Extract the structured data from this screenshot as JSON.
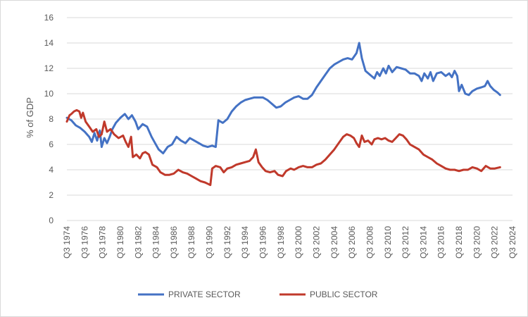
{
  "chart_data": {
    "type": "line",
    "title": "",
    "xlabel": "",
    "ylabel": "% of GDP",
    "ylim": [
      0,
      16
    ],
    "yticks": [
      "0",
      "2",
      "4",
      "6",
      "8",
      "10",
      "12",
      "14",
      "16"
    ],
    "xticks": [
      "Q3 1974",
      "Q3 1976",
      "Q3 1978",
      "Q3 1980",
      "Q3 1982",
      "Q3 1984",
      "Q3 1986",
      "Q3 1988",
      "Q3 1990",
      "Q3 1992",
      "Q3 1994",
      "Q3 1996",
      "Q3 1998",
      "Q3 2000",
      "Q3 2002",
      "Q3 2004",
      "Q3 2006",
      "Q3 2008",
      "Q3 2010",
      "Q3 2012",
      "Q3 2014",
      "Q3 2016",
      "Q3 2018",
      "Q3 2020",
      "Q3 2022",
      "Q3 2024"
    ],
    "grid": true,
    "legend": "bottom",
    "series": [
      {
        "name": "PRIVATE SECTOR",
        "color": "#4472C4",
        "points": [
          [
            1974.5,
            8.1
          ],
          [
            1975.0,
            7.9
          ],
          [
            1975.5,
            7.5
          ],
          [
            1976.0,
            7.3
          ],
          [
            1976.5,
            7.0
          ],
          [
            1977.0,
            6.6
          ],
          [
            1977.3,
            6.2
          ],
          [
            1977.6,
            6.9
          ],
          [
            1977.9,
            6.3
          ],
          [
            1978.2,
            7.1
          ],
          [
            1978.4,
            5.8
          ],
          [
            1978.7,
            6.5
          ],
          [
            1979.0,
            6.1
          ],
          [
            1979.3,
            6.6
          ],
          [
            1979.6,
            7.2
          ],
          [
            1980.0,
            7.7
          ],
          [
            1980.5,
            8.1
          ],
          [
            1981.0,
            8.4
          ],
          [
            1981.4,
            8.0
          ],
          [
            1981.8,
            8.3
          ],
          [
            1982.2,
            7.8
          ],
          [
            1982.5,
            7.2
          ],
          [
            1983.0,
            7.6
          ],
          [
            1983.5,
            7.4
          ],
          [
            1984.0,
            6.6
          ],
          [
            1984.4,
            6.1
          ],
          [
            1984.8,
            5.6
          ],
          [
            1985.3,
            5.3
          ],
          [
            1985.8,
            5.8
          ],
          [
            1986.3,
            6.0
          ],
          [
            1986.8,
            6.6
          ],
          [
            1987.3,
            6.3
          ],
          [
            1987.8,
            6.1
          ],
          [
            1988.3,
            6.5
          ],
          [
            1988.8,
            6.3
          ],
          [
            1989.3,
            6.1
          ],
          [
            1989.8,
            5.9
          ],
          [
            1990.3,
            5.8
          ],
          [
            1990.8,
            5.9
          ],
          [
            1991.2,
            5.8
          ],
          [
            1991.5,
            7.9
          ],
          [
            1992.0,
            7.7
          ],
          [
            1992.5,
            8.0
          ],
          [
            1993.0,
            8.6
          ],
          [
            1993.5,
            9.0
          ],
          [
            1994.0,
            9.3
          ],
          [
            1994.5,
            9.5
          ],
          [
            1995.0,
            9.6
          ],
          [
            1995.5,
            9.7
          ],
          [
            1996.0,
            9.7
          ],
          [
            1996.5,
            9.7
          ],
          [
            1997.0,
            9.5
          ],
          [
            1997.5,
            9.2
          ],
          [
            1998.0,
            8.9
          ],
          [
            1998.5,
            9.0
          ],
          [
            1999.0,
            9.3
          ],
          [
            1999.5,
            9.5
          ],
          [
            2000.0,
            9.7
          ],
          [
            2000.5,
            9.8
          ],
          [
            2001.0,
            9.6
          ],
          [
            2001.5,
            9.6
          ],
          [
            2002.0,
            9.9
          ],
          [
            2002.5,
            10.5
          ],
          [
            2003.0,
            11.0
          ],
          [
            2003.5,
            11.5
          ],
          [
            2004.0,
            12.0
          ],
          [
            2004.5,
            12.3
          ],
          [
            2005.0,
            12.5
          ],
          [
            2005.5,
            12.7
          ],
          [
            2006.0,
            12.8
          ],
          [
            2006.5,
            12.7
          ],
          [
            2007.0,
            13.2
          ],
          [
            2007.3,
            14.0
          ],
          [
            2007.6,
            12.8
          ],
          [
            2008.0,
            11.8
          ],
          [
            2008.5,
            11.5
          ],
          [
            2009.0,
            11.2
          ],
          [
            2009.3,
            11.7
          ],
          [
            2009.6,
            11.4
          ],
          [
            2010.0,
            12.0
          ],
          [
            2010.3,
            11.6
          ],
          [
            2010.6,
            12.2
          ],
          [
            2011.0,
            11.7
          ],
          [
            2011.5,
            12.1
          ],
          [
            2012.0,
            12.0
          ],
          [
            2012.5,
            11.9
          ],
          [
            2013.0,
            11.6
          ],
          [
            2013.5,
            11.6
          ],
          [
            2014.0,
            11.4
          ],
          [
            2014.3,
            11.0
          ],
          [
            2014.6,
            11.6
          ],
          [
            2015.0,
            11.2
          ],
          [
            2015.3,
            11.7
          ],
          [
            2015.6,
            11.0
          ],
          [
            2016.0,
            11.6
          ],
          [
            2016.5,
            11.7
          ],
          [
            2017.0,
            11.4
          ],
          [
            2017.4,
            11.6
          ],
          [
            2017.7,
            11.3
          ],
          [
            2018.0,
            11.8
          ],
          [
            2018.3,
            11.4
          ],
          [
            2018.5,
            10.2
          ],
          [
            2018.8,
            10.7
          ],
          [
            2019.2,
            10.0
          ],
          [
            2019.6,
            9.9
          ],
          [
            2020.0,
            10.2
          ],
          [
            2020.5,
            10.4
          ],
          [
            2021.0,
            10.5
          ],
          [
            2021.4,
            10.6
          ],
          [
            2021.7,
            11.0
          ],
          [
            2022.0,
            10.6
          ],
          [
            2022.4,
            10.3
          ],
          [
            2022.8,
            10.1
          ],
          [
            2023.1,
            9.9
          ]
        ]
      },
      {
        "name": "PUBLIC SECTOR",
        "color": "#C0392B",
        "points": [
          [
            1974.5,
            7.8
          ],
          [
            1974.8,
            8.3
          ],
          [
            1975.0,
            8.4
          ],
          [
            1975.3,
            8.6
          ],
          [
            1975.6,
            8.7
          ],
          [
            1975.9,
            8.6
          ],
          [
            1976.1,
            8.1
          ],
          [
            1976.3,
            8.5
          ],
          [
            1976.6,
            7.8
          ],
          [
            1977.0,
            7.4
          ],
          [
            1977.4,
            7.0
          ],
          [
            1977.8,
            7.2
          ],
          [
            1978.1,
            6.6
          ],
          [
            1978.4,
            6.8
          ],
          [
            1978.7,
            7.8
          ],
          [
            1979.0,
            7.0
          ],
          [
            1979.4,
            7.2
          ],
          [
            1979.8,
            6.8
          ],
          [
            1980.3,
            6.5
          ],
          [
            1980.8,
            6.7
          ],
          [
            1981.1,
            6.2
          ],
          [
            1981.4,
            5.8
          ],
          [
            1981.7,
            6.6
          ],
          [
            1981.9,
            5.0
          ],
          [
            1982.3,
            5.2
          ],
          [
            1982.7,
            4.9
          ],
          [
            1983.0,
            5.3
          ],
          [
            1983.3,
            5.4
          ],
          [
            1983.7,
            5.2
          ],
          [
            1984.1,
            4.4
          ],
          [
            1984.6,
            4.2
          ],
          [
            1985.0,
            3.8
          ],
          [
            1985.5,
            3.6
          ],
          [
            1986.0,
            3.6
          ],
          [
            1986.5,
            3.7
          ],
          [
            1987.0,
            4.0
          ],
          [
            1987.5,
            3.8
          ],
          [
            1988.0,
            3.7
          ],
          [
            1988.5,
            3.5
          ],
          [
            1989.0,
            3.3
          ],
          [
            1989.5,
            3.1
          ],
          [
            1990.0,
            3.0
          ],
          [
            1990.3,
            2.9
          ],
          [
            1990.6,
            2.8
          ],
          [
            1990.8,
            4.1
          ],
          [
            1991.2,
            4.3
          ],
          [
            1991.7,
            4.2
          ],
          [
            1992.1,
            3.8
          ],
          [
            1992.5,
            4.1
          ],
          [
            1993.0,
            4.2
          ],
          [
            1993.5,
            4.4
          ],
          [
            1994.0,
            4.5
          ],
          [
            1994.5,
            4.6
          ],
          [
            1995.0,
            4.7
          ],
          [
            1995.4,
            5.0
          ],
          [
            1995.7,
            5.6
          ],
          [
            1996.0,
            4.6
          ],
          [
            1996.4,
            4.2
          ],
          [
            1996.8,
            3.9
          ],
          [
            1997.3,
            3.8
          ],
          [
            1997.8,
            3.9
          ],
          [
            1998.2,
            3.6
          ],
          [
            1998.7,
            3.5
          ],
          [
            1999.1,
            3.9
          ],
          [
            1999.6,
            4.1
          ],
          [
            2000.0,
            4.0
          ],
          [
            2000.5,
            4.2
          ],
          [
            2001.0,
            4.3
          ],
          [
            2001.5,
            4.2
          ],
          [
            2002.0,
            4.2
          ],
          [
            2002.5,
            4.4
          ],
          [
            2003.0,
            4.5
          ],
          [
            2003.5,
            4.8
          ],
          [
            2004.0,
            5.2
          ],
          [
            2004.5,
            5.6
          ],
          [
            2005.0,
            6.1
          ],
          [
            2005.5,
            6.6
          ],
          [
            2005.9,
            6.8
          ],
          [
            2006.3,
            6.7
          ],
          [
            2006.7,
            6.5
          ],
          [
            2007.0,
            6.1
          ],
          [
            2007.3,
            5.8
          ],
          [
            2007.6,
            6.7
          ],
          [
            2007.9,
            6.2
          ],
          [
            2008.3,
            6.3
          ],
          [
            2008.7,
            6.0
          ],
          [
            2009.0,
            6.4
          ],
          [
            2009.4,
            6.5
          ],
          [
            2009.8,
            6.4
          ],
          [
            2010.2,
            6.5
          ],
          [
            2010.6,
            6.3
          ],
          [
            2011.0,
            6.2
          ],
          [
            2011.4,
            6.5
          ],
          [
            2011.8,
            6.8
          ],
          [
            2012.2,
            6.7
          ],
          [
            2012.6,
            6.4
          ],
          [
            2013.0,
            6.0
          ],
          [
            2013.5,
            5.8
          ],
          [
            2014.0,
            5.6
          ],
          [
            2014.5,
            5.2
          ],
          [
            2015.0,
            5.0
          ],
          [
            2015.5,
            4.8
          ],
          [
            2016.0,
            4.5
          ],
          [
            2016.5,
            4.3
          ],
          [
            2017.0,
            4.1
          ],
          [
            2017.5,
            4.0
          ],
          [
            2018.0,
            4.0
          ],
          [
            2018.5,
            3.9
          ],
          [
            2019.0,
            4.0
          ],
          [
            2019.5,
            4.0
          ],
          [
            2020.0,
            4.2
          ],
          [
            2020.5,
            4.1
          ],
          [
            2021.0,
            3.9
          ],
          [
            2021.5,
            4.3
          ],
          [
            2022.0,
            4.1
          ],
          [
            2022.5,
            4.1
          ],
          [
            2023.1,
            4.2
          ]
        ]
      }
    ]
  }
}
